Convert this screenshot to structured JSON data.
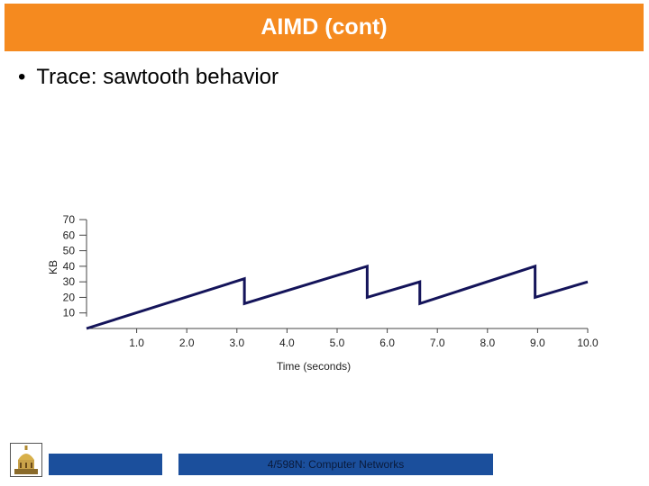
{
  "slide": {
    "title": "AIMD (cont)",
    "bullet": "Trace: sawtooth behavior",
    "bullet_glyph": "•",
    "footer_text": "4/598N: Computer Networks",
    "colors": {
      "title_bar": "#f58a1f",
      "footer_boxes": "#1b4f9c",
      "trace_line": "#14145a"
    },
    "logo_icon": "university-dome-logo-icon"
  },
  "chart_data": {
    "type": "line",
    "title": "",
    "xlabel": "Time (seconds)",
    "ylabel": "KB",
    "x_ticks": [
      "1.0",
      "2.0",
      "3.0",
      "4.0",
      "5.0",
      "6.0",
      "7.0",
      "8.0",
      "9.0",
      "10.0"
    ],
    "y_ticks": [
      "70",
      "60",
      "50",
      "40",
      "30",
      "20",
      "10"
    ],
    "xlim": [
      0,
      10
    ],
    "ylim": [
      0,
      70
    ],
    "grid": false,
    "series": [
      {
        "x": [
          0,
          3.15,
          3.15,
          5.6,
          5.6,
          6.65,
          6.65,
          8.95,
          8.95,
          10
        ],
        "y": [
          0,
          32,
          16,
          40,
          20,
          30,
          16,
          40,
          20,
          30
        ]
      }
    ]
  }
}
